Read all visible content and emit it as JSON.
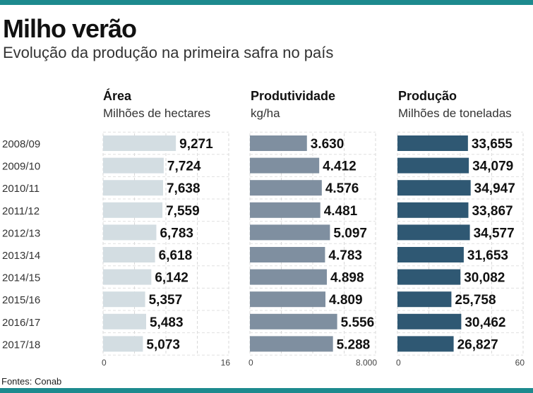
{
  "header": {
    "title": "Milho verão",
    "subtitle": "Evolução da produção na primeira safra no país"
  },
  "source": "Fontes: Conab",
  "colors": {
    "area": "#d3dde2",
    "productivity": "#7f8fa0",
    "production": "#2f5873",
    "accent": "#1d8a8e"
  },
  "chart_data": [
    {
      "type": "bar",
      "orientation": "horizontal",
      "title": "Área",
      "unit": "Milhões de hectares",
      "categories": [
        "2008/09",
        "2009/10",
        "2010/11",
        "2011/12",
        "2012/13",
        "2013/14",
        "2014/15",
        "2015/16",
        "2016/17",
        "2017/18"
      ],
      "values": [
        9.271,
        7.724,
        7.638,
        7.559,
        6.783,
        6.618,
        6.142,
        5.357,
        5.483,
        5.073
      ],
      "labels": [
        "9,271",
        "7,724",
        "7,638",
        "7,559",
        "6,783",
        "6,618",
        "6,142",
        "5,357",
        "5,483",
        "5,073"
      ],
      "xlim": [
        0,
        16
      ],
      "ticks": [
        "0",
        "16"
      ],
      "grid": true
    },
    {
      "type": "bar",
      "orientation": "horizontal",
      "title": "Produtividade",
      "unit": "kg/ha",
      "categories": [
        "2008/09",
        "2009/10",
        "2010/11",
        "2011/12",
        "2012/13",
        "2013/14",
        "2014/15",
        "2015/16",
        "2016/17",
        "2017/18"
      ],
      "values": [
        3630,
        4412,
        4576,
        4481,
        5097,
        4783,
        4898,
        4809,
        5556,
        5288
      ],
      "labels": [
        "3.630",
        "4.412",
        "4.576",
        "4.481",
        "5.097",
        "4.783",
        "4.898",
        "4.809",
        "5.556",
        "5.288"
      ],
      "xlim": [
        0,
        8000
      ],
      "ticks": [
        "0",
        "8.000"
      ],
      "grid": true
    },
    {
      "type": "bar",
      "orientation": "horizontal",
      "title": "Produção",
      "unit": "Milhões de toneladas",
      "categories": [
        "2008/09",
        "2009/10",
        "2010/11",
        "2011/12",
        "2012/13",
        "2013/14",
        "2014/15",
        "2015/16",
        "2016/17",
        "2017/18"
      ],
      "values": [
        33.655,
        34.079,
        34.947,
        33.867,
        34.577,
        31.653,
        30.082,
        25.758,
        30.462,
        26.827
      ],
      "labels": [
        "33,655",
        "34,079",
        "34,947",
        "33,867",
        "34,577",
        "31,653",
        "30,082",
        "25,758",
        "30,462",
        "26,827"
      ],
      "xlim": [
        0,
        60
      ],
      "ticks": [
        "0",
        "60"
      ],
      "grid": true
    }
  ]
}
